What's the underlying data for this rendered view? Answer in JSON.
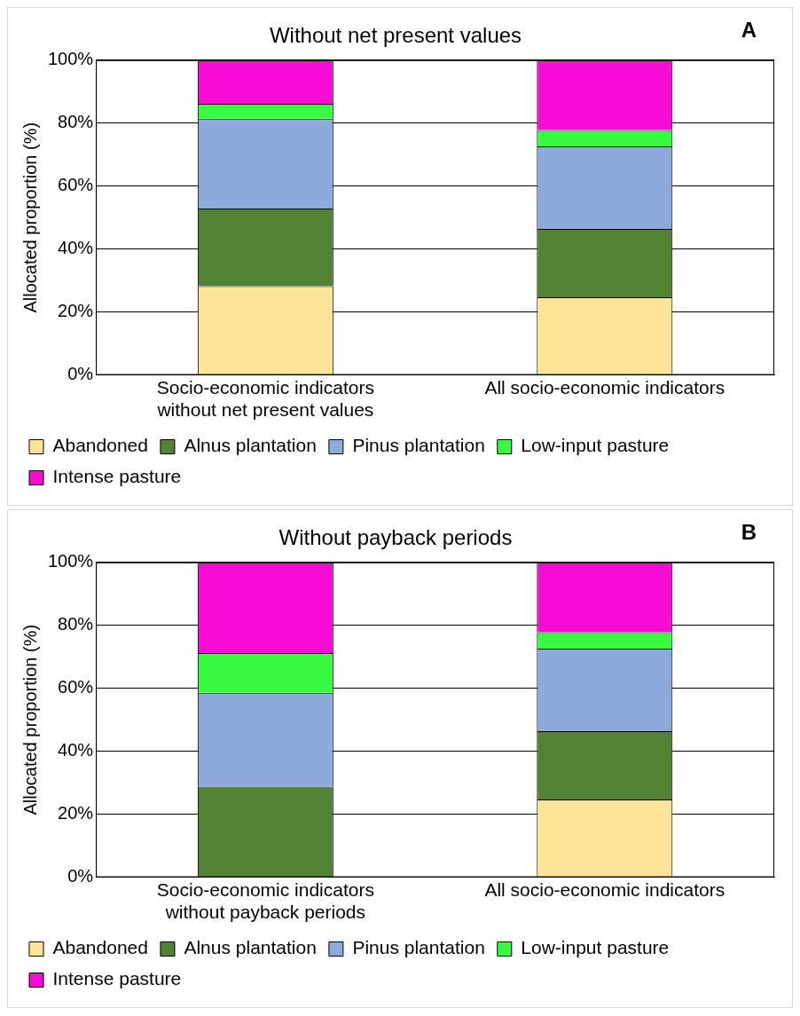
{
  "chart_data": [
    {
      "type": "bar",
      "title": "Without net present values",
      "ylabel": "Allocated proportion (%)",
      "annotations": [
        "A"
      ],
      "categories": [
        "Socio-economic indicators without net present values",
        "All socio-economic indicators"
      ],
      "stacked": true,
      "series": [
        {
          "name": "Abandoned",
          "color": "#ffe399",
          "values": [
            28.2,
            24.7
          ]
        },
        {
          "name": "Alnus plantation",
          "color": "#548235",
          "values": [
            24.7,
            21.7
          ]
        },
        {
          "name": "Pinus plantation",
          "color": "#8eaadb",
          "values": [
            28.5,
            26.2
          ]
        },
        {
          "name": "Low-input pasture",
          "color": "#39f942",
          "values": [
            4.7,
            5.2
          ]
        },
        {
          "name": "Intense pasture",
          "color": "#f70cd5",
          "values": [
            13.9,
            22.2
          ]
        }
      ],
      "ylim": [
        0,
        100
      ],
      "yticks": [
        {
          "value": 0,
          "label": "0%"
        },
        {
          "value": 20,
          "label": "20%"
        },
        {
          "value": 40,
          "label": "40%"
        },
        {
          "value": 60,
          "label": "60%"
        },
        {
          "value": 80,
          "label": "80%"
        },
        {
          "value": 100,
          "label": "100%"
        }
      ],
      "grid": "y",
      "legend": "bottom"
    },
    {
      "type": "bar",
      "title": "Without payback periods",
      "ylabel": "Allocated proportion (%)",
      "annotations": [
        "B"
      ],
      "categories": [
        "Socio-economic indicators without payback periods",
        "All socio-economic indicators"
      ],
      "stacked": true,
      "series": [
        {
          "name": "Abandoned",
          "color": "#ffe399",
          "values": [
            0,
            24.7
          ]
        },
        {
          "name": "Alnus plantation",
          "color": "#548235",
          "values": [
            28.8,
            21.7
          ]
        },
        {
          "name": "Pinus plantation",
          "color": "#8eaadb",
          "values": [
            29.8,
            26.2
          ]
        },
        {
          "name": "Low-input pasture",
          "color": "#39f942",
          "values": [
            12.6,
            5.2
          ]
        },
        {
          "name": "Intense pasture",
          "color": "#f70cd5",
          "values": [
            28.8,
            22.2
          ]
        }
      ],
      "ylim": [
        0,
        100
      ],
      "yticks": [
        {
          "value": 0,
          "label": "0%"
        },
        {
          "value": 20,
          "label": "20%"
        },
        {
          "value": 40,
          "label": "40%"
        },
        {
          "value": 60,
          "label": "60%"
        },
        {
          "value": 80,
          "label": "80%"
        },
        {
          "value": 100,
          "label": "100%"
        }
      ],
      "grid": "y",
      "legend": "bottom"
    }
  ]
}
